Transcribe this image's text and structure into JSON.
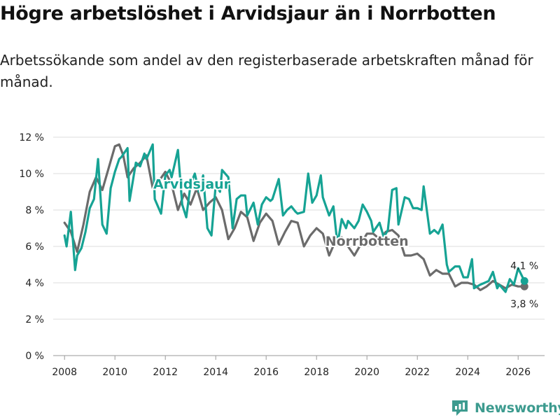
{
  "title": "Högre arbetslöshet i Arvidsjaur än i Norrbotten",
  "subtitle": "Arbetssökande som andel av den registerbaserade arbetskraften månad för månad.",
  "brand": {
    "name": "Newsworthy",
    "icon": "newsworthy-logo-icon"
  },
  "colors": {
    "arvidsjaur": "#16a394",
    "norrbotten": "#6b6b6b",
    "grid": "#dddddd",
    "brand": "#3d9b8f"
  },
  "chart_data": {
    "type": "line",
    "title": "Högre arbetslöshet i Arvidsjaur än i Norrbotten",
    "xlabel": "",
    "ylabel": "",
    "xlim": [
      2007.55,
      2027.05
    ],
    "ylim": [
      0,
      12
    ],
    "y_ticks": [
      0,
      2,
      4,
      6,
      8,
      10,
      12
    ],
    "y_tick_labels": [
      "0 %",
      "2 %",
      "4 %",
      "6 %",
      "8 %",
      "10 %",
      "12 %"
    ],
    "x_ticks": [
      2008,
      2010,
      2012,
      2014,
      2016,
      2018,
      2020,
      2022,
      2024,
      2026
    ],
    "x_tick_labels": [
      "2008",
      "2010",
      "2012",
      "2014",
      "2016",
      "2018",
      "2020",
      "2022",
      "2024",
      "2026"
    ],
    "grid": true,
    "series": [
      {
        "name": "Norrbotten",
        "label": "Norrbotten",
        "end_label": "3,8 %",
        "x": [
          2008.0,
          2008.25,
          2008.5,
          2008.75,
          2009.0,
          2009.25,
          2009.5,
          2009.75,
          2010.0,
          2010.17,
          2010.33,
          2010.5,
          2010.75,
          2011.0,
          2011.25,
          2011.5,
          2011.75,
          2012.0,
          2012.25,
          2012.5,
          2012.75,
          2013.0,
          2013.25,
          2013.5,
          2013.75,
          2014.0,
          2014.25,
          2014.5,
          2014.75,
          2015.0,
          2015.25,
          2015.5,
          2015.75,
          2016.0,
          2016.25,
          2016.5,
          2016.75,
          2017.0,
          2017.25,
          2017.5,
          2017.75,
          2018.0,
          2018.25,
          2018.5,
          2018.75,
          2019.0,
          2019.25,
          2019.5,
          2019.75,
          2020.0,
          2020.25,
          2020.5,
          2020.75,
          2021.0,
          2021.25,
          2021.5,
          2021.75,
          2022.0,
          2022.25,
          2022.5,
          2022.75,
          2023.0,
          2023.25,
          2023.5,
          2023.75,
          2024.0,
          2024.25,
          2024.5,
          2024.75,
          2025.0,
          2025.25,
          2025.5,
          2025.75,
          2026.0,
          2026.25
        ],
        "values": [
          7.3,
          6.8,
          5.7,
          7.2,
          9.0,
          9.8,
          9.1,
          10.3,
          11.5,
          11.6,
          11.0,
          9.8,
          10.3,
          10.6,
          11.0,
          9.2,
          9.6,
          10.1,
          9.4,
          8.0,
          8.9,
          8.3,
          9.2,
          8.0,
          8.4,
          8.7,
          8.0,
          6.4,
          7.0,
          7.9,
          7.6,
          6.3,
          7.3,
          7.8,
          7.4,
          6.1,
          6.8,
          7.4,
          7.3,
          6.0,
          6.6,
          7.0,
          6.7,
          5.5,
          6.3,
          6.5,
          6.0,
          5.5,
          6.1,
          6.7,
          6.7,
          6.4,
          6.8,
          6.9,
          6.6,
          5.5,
          5.5,
          5.6,
          5.3,
          4.4,
          4.7,
          4.5,
          4.5,
          3.8,
          4.0,
          4.0,
          3.9,
          3.6,
          3.8,
          4.1,
          3.9,
          3.7,
          3.9,
          3.8,
          3.8
        ]
      },
      {
        "name": "Arvidsjaur",
        "label": "Arvidsjaur",
        "end_label": "4,1 %",
        "x": [
          2008.0,
          2008.08,
          2008.25,
          2008.42,
          2008.5,
          2008.67,
          2008.83,
          2009.0,
          2009.17,
          2009.33,
          2009.5,
          2009.67,
          2009.83,
          2010.0,
          2010.17,
          2010.25,
          2010.5,
          2010.58,
          2010.83,
          2011.0,
          2011.17,
          2011.25,
          2011.5,
          2011.58,
          2011.83,
          2012.0,
          2012.17,
          2012.25,
          2012.5,
          2012.67,
          2012.83,
          2013.0,
          2013.17,
          2013.33,
          2013.5,
          2013.67,
          2013.83,
          2014.0,
          2014.17,
          2014.25,
          2014.5,
          2014.67,
          2014.83,
          2015.0,
          2015.17,
          2015.25,
          2015.5,
          2015.67,
          2015.83,
          2016.0,
          2016.17,
          2016.25,
          2016.5,
          2016.67,
          2016.83,
          2017.0,
          2017.17,
          2017.25,
          2017.5,
          2017.67,
          2017.83,
          2018.0,
          2018.17,
          2018.25,
          2018.5,
          2018.67,
          2018.83,
          2019.0,
          2019.17,
          2019.25,
          2019.5,
          2019.67,
          2019.83,
          2020.0,
          2020.17,
          2020.25,
          2020.5,
          2020.67,
          2020.83,
          2021.0,
          2021.17,
          2021.25,
          2021.5,
          2021.67,
          2021.83,
          2022.0,
          2022.17,
          2022.25,
          2022.5,
          2022.67,
          2022.83,
          2023.0,
          2023.17,
          2023.25,
          2023.5,
          2023.67,
          2023.83,
          2024.0,
          2024.17,
          2024.25,
          2024.5,
          2024.67,
          2024.83,
          2025.0,
          2025.17,
          2025.25,
          2025.5,
          2025.67,
          2025.83,
          2026.0,
          2026.25
        ],
        "values": [
          6.6,
          6.0,
          7.9,
          4.7,
          5.5,
          5.9,
          6.8,
          8.1,
          8.6,
          10.8,
          7.2,
          6.7,
          9.2,
          10.1,
          10.8,
          10.9,
          11.4,
          8.5,
          10.6,
          10.4,
          11.1,
          10.8,
          11.6,
          8.6,
          7.8,
          9.9,
          10.2,
          9.8,
          11.3,
          8.3,
          7.6,
          9.4,
          10.0,
          9.0,
          9.9,
          7.0,
          6.6,
          9.4,
          9.0,
          10.2,
          9.8,
          7.0,
          8.6,
          8.8,
          8.8,
          7.7,
          8.4,
          7.2,
          8.3,
          8.7,
          8.5,
          8.6,
          9.7,
          7.7,
          8.0,
          8.2,
          7.9,
          7.8,
          7.9,
          10.0,
          8.4,
          8.8,
          9.9,
          8.7,
          7.7,
          8.2,
          6.1,
          7.5,
          7.0,
          7.4,
          7.0,
          7.4,
          8.3,
          7.9,
          7.4,
          6.8,
          7.3,
          6.5,
          6.9,
          9.1,
          9.2,
          7.2,
          8.7,
          8.6,
          8.1,
          8.1,
          8.0,
          9.3,
          6.7,
          6.9,
          6.7,
          7.2,
          5.0,
          4.6,
          4.9,
          4.9,
          4.3,
          4.3,
          5.3,
          3.7,
          3.9,
          4.0,
          4.1,
          4.6,
          3.7,
          3.9,
          3.5,
          4.2,
          3.9,
          4.8,
          4.1
        ]
      }
    ]
  }
}
